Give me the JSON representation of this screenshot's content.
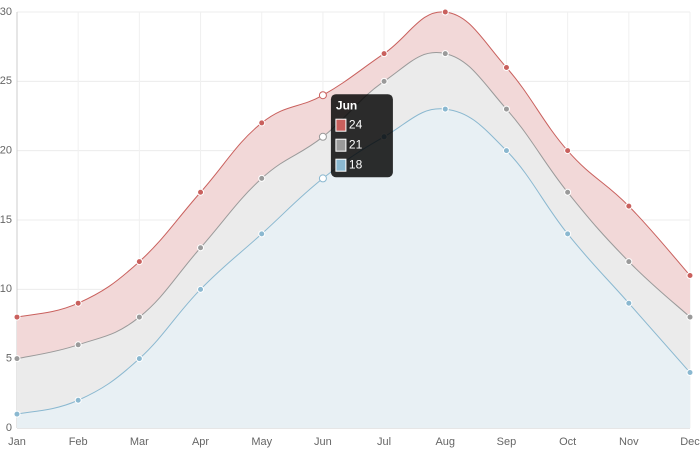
{
  "chart_data": {
    "type": "area",
    "categories": [
      "Jan",
      "Feb",
      "Mar",
      "Apr",
      "May",
      "Jun",
      "Jul",
      "Aug",
      "Sep",
      "Oct",
      "Nov",
      "Dec"
    ],
    "series": [
      {
        "color": "#c9605d",
        "fill": "#f2d8d8",
        "values": [
          8,
          9,
          12,
          17,
          22,
          24,
          27,
          30,
          26,
          20,
          16,
          11
        ]
      },
      {
        "color": "#9a9a9a",
        "fill": "#ebebeb",
        "values": [
          5,
          6,
          8,
          13,
          18,
          21,
          25,
          27,
          23,
          17,
          12,
          8
        ]
      },
      {
        "color": "#8ab8d0",
        "fill": "#e8f0f4",
        "values": [
          1,
          2,
          5,
          10,
          14,
          18,
          21,
          23,
          20,
          14,
          9,
          4
        ]
      }
    ],
    "ylim": [
      0,
      30
    ],
    "yticks": [
      0,
      5,
      10,
      15,
      20,
      25,
      30
    ],
    "grid": true
  }
}
